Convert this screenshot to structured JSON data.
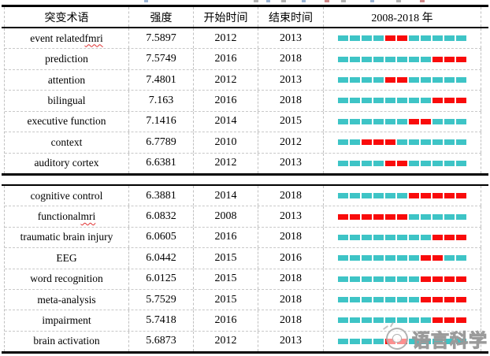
{
  "chart_data": {
    "type": "table",
    "columns": [
      "突变术语",
      "强度",
      "开始时间",
      "结束时间",
      "2008-2018 年"
    ],
    "timeline": {
      "start_year": 2008,
      "end_year": 2018
    },
    "sections": [
      {
        "rows": [
          {
            "term": "event related fmri",
            "spellcheck_underline": "fmri",
            "strength": "7.5897",
            "start": 2012,
            "end": 2013
          },
          {
            "term": "prediction",
            "strength": "7.5749",
            "start": 2016,
            "end": 2018
          },
          {
            "term": "attention",
            "strength": "7.4801",
            "start": 2012,
            "end": 2013
          },
          {
            "term": "bilingual",
            "strength": "7.163",
            "start": 2016,
            "end": 2018
          },
          {
            "term": "executive function",
            "strength": "7.1416",
            "start": 2014,
            "end": 2015
          },
          {
            "term": "context",
            "strength": "6.7789",
            "start": 2010,
            "end": 2012
          },
          {
            "term": "auditory cortex",
            "strength": "6.6381",
            "start": 2012,
            "end": 2013
          }
        ]
      },
      {
        "rows": [
          {
            "term": "cognitive control",
            "strength": "6.3881",
            "start": 2014,
            "end": 2018
          },
          {
            "term": "functional mri",
            "spellcheck_underline": "mri",
            "strength": "6.0832",
            "start": 2008,
            "end": 2013
          },
          {
            "term": "traumatic brain injury",
            "strength": "6.0605",
            "start": 2016,
            "end": 2018
          },
          {
            "term": "EEG",
            "strength": "6.0442",
            "start": 2015,
            "end": 2016
          },
          {
            "term": "word recognition",
            "strength": "6.0125",
            "start": 2015,
            "end": 2018
          },
          {
            "term": "meta-analysis",
            "strength": "5.7529",
            "start": 2015,
            "end": 2018
          },
          {
            "term": "impairment",
            "strength": "5.7418",
            "start": 2016,
            "end": 2018
          },
          {
            "term": "brain activation",
            "strength": "5.6873",
            "start": 2012,
            "end": 2013
          }
        ]
      }
    ]
  },
  "colors": {
    "timeline_base": "#3EC4C6",
    "timeline_burst": "#F90B0B"
  },
  "watermark": {
    "text": "语言科学"
  }
}
